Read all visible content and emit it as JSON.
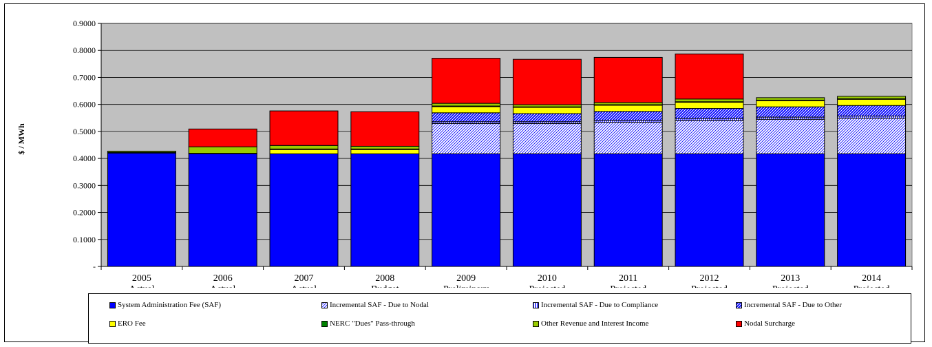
{
  "chart_data": {
    "type": "bar",
    "stacked": true,
    "ylabel": "$ / MWh",
    "xlabel": "",
    "title": "",
    "ylim": [
      0,
      0.9
    ],
    "yticks": [
      0,
      0.1,
      0.2,
      0.3,
      0.4,
      0.5,
      0.6,
      0.7,
      0.8,
      0.9
    ],
    "ytick_labels": [
      "-",
      "0.1000",
      "0.2000",
      "0.3000",
      "0.4000",
      "0.5000",
      "0.6000",
      "0.7000",
      "0.8000",
      "0.9000"
    ],
    "grid": true,
    "legend_position": "bottom",
    "categories": [
      [
        "2005",
        "Actual"
      ],
      [
        "2006",
        "Actual"
      ],
      [
        "2007",
        "Actual"
      ],
      [
        "2008",
        "Budget"
      ],
      [
        "2009",
        "Preliminary"
      ],
      [
        "2010",
        "Projected"
      ],
      [
        "2011",
        "Projected"
      ],
      [
        "2012",
        "Projected"
      ],
      [
        "2013",
        "Projected"
      ],
      [
        "2014",
        "Projected"
      ]
    ],
    "series": [
      {
        "name": "System Administration Fee (SAF)",
        "color": "#0000ff",
        "pattern": "solid",
        "values": [
          0.42,
          0.417,
          0.417,
          0.417,
          0.417,
          0.417,
          0.417,
          0.417,
          0.417,
          0.417
        ]
      },
      {
        "name": "Incremental SAF - Due to Nodal",
        "color": "#0000ff",
        "pattern": "diag-light",
        "values": [
          0,
          0,
          0,
          0,
          0.112,
          0.112,
          0.117,
          0.123,
          0.128,
          0.132
        ]
      },
      {
        "name": "Incremental SAF - Due to Compliance",
        "color": "#0000ff",
        "pattern": "vertical",
        "values": [
          0,
          0,
          0,
          0,
          0.007,
          0.007,
          0.007,
          0.008,
          0.008,
          0.008
        ]
      },
      {
        "name": "Incremental SAF - Due to Other",
        "color": "#0000ff",
        "pattern": "diag-dense",
        "values": [
          0,
          0,
          0,
          0,
          0.033,
          0.03,
          0.033,
          0.037,
          0.038,
          0.039
        ]
      },
      {
        "name": "ERO Fee",
        "color": "#ffff00",
        "pattern": "solid",
        "values": [
          0,
          0,
          0.016,
          0.016,
          0.023,
          0.023,
          0.023,
          0.023,
          0.023,
          0.023
        ]
      },
      {
        "name": "NERC \"Dues\" Pass-through",
        "color": "#008000",
        "pattern": "solid",
        "values": [
          0.003,
          0.002,
          0.002,
          0.002,
          0.002,
          0.002,
          0.002,
          0.002,
          0.002,
          0.002
        ]
      },
      {
        "name": "Other Revenue and Interest Income",
        "color": "#99cc00",
        "pattern": "solid",
        "values": [
          0.004,
          0.024,
          0.013,
          0.01,
          0.01,
          0.008,
          0.008,
          0.01,
          0.009,
          0.009
        ]
      },
      {
        "name": "Nodal Surcharge",
        "color": "#ff0000",
        "pattern": "solid",
        "values": [
          0,
          0.066,
          0.128,
          0.128,
          0.167,
          0.168,
          0.167,
          0.167,
          0,
          0
        ]
      }
    ]
  }
}
